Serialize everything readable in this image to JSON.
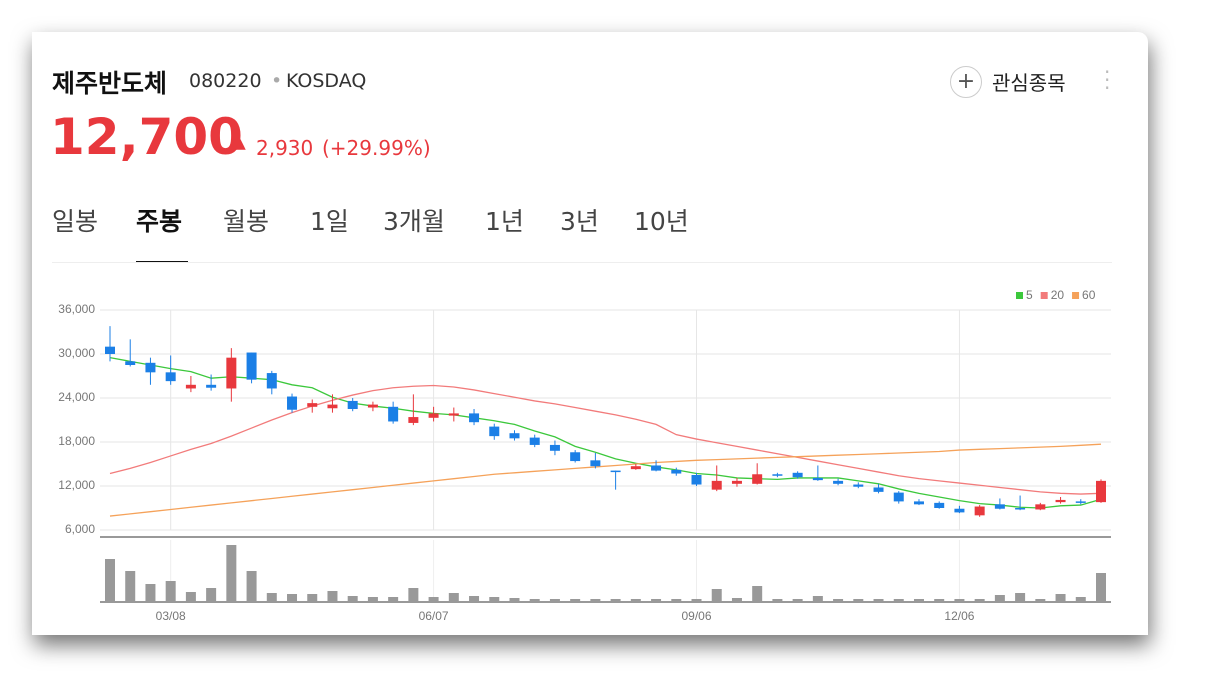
{
  "header": {
    "name": "제주반도체",
    "code": "080220",
    "market": "KOSDAQ",
    "price": "12,700",
    "change": "2,930",
    "change_pct": "(+29.99%)",
    "watch": "관심종목"
  },
  "tabs": [
    "일봉",
    "주봉",
    "월봉",
    "1일",
    "3개월",
    "1년",
    "3년",
    "10년"
  ],
  "selected_tab": 1,
  "chart_data": {
    "type": "candlestick",
    "categories": [
      null,
      null,
      null,
      "03/08",
      null,
      null,
      null,
      null,
      null,
      null,
      null,
      null,
      null,
      null,
      null,
      null,
      "06/07",
      null,
      null,
      null,
      null,
      null,
      null,
      null,
      null,
      null,
      null,
      null,
      null,
      "09/06",
      null,
      null,
      null,
      null,
      null,
      null,
      null,
      null,
      null,
      null,
      null,
      null,
      "12/06",
      null,
      null,
      null,
      null,
      null,
      null,
      null
    ],
    "open": [
      31000,
      29000,
      28800,
      27500,
      25300,
      25800,
      25300,
      30200,
      27400,
      24200,
      22800,
      22600,
      23600,
      22700,
      22800,
      20600,
      21300,
      21600,
      21900,
      20100,
      19200,
      18600,
      17600,
      16600,
      15500,
      14100,
      14300,
      14800,
      14200,
      13500,
      11500,
      12300,
      12300,
      13600,
      13800,
      13100,
      12700,
      12200,
      11800,
      11100,
      9900,
      9700,
      8900,
      8000,
      9500,
      9000,
      8800,
      9800,
      9900,
      9800
    ],
    "high": [
      33800,
      32000,
      29500,
      29800,
      27000,
      27200,
      30800,
      30200,
      27700,
      24600,
      23800,
      24500,
      24000,
      23500,
      23500,
      24500,
      22800,
      22700,
      22500,
      20500,
      19600,
      19000,
      18200,
      16900,
      16500,
      14100,
      15000,
      15500,
      14500,
      13800,
      14800,
      13100,
      15100,
      13800,
      14000,
      14800,
      13000,
      12500,
      12300,
      11300,
      10200,
      9900,
      9300,
      9400,
      10300,
      10700,
      9700,
      10500,
      10200,
      12900
    ],
    "low": [
      29000,
      28300,
      25800,
      25800,
      24800,
      25000,
      23500,
      26000,
      24500,
      22000,
      22000,
      22000,
      22200,
      22200,
      20500,
      20300,
      20800,
      20800,
      20300,
      18300,
      18200,
      17300,
      16200,
      15200,
      14400,
      11500,
      14200,
      14000,
      13400,
      12000,
      11300,
      11900,
      12200,
      13200,
      13000,
      12700,
      12100,
      11700,
      11000,
      9600,
      9400,
      8900,
      8300,
      7800,
      8800,
      8700,
      8700,
      9600,
      9500,
      9700
    ],
    "close": [
      30000,
      28500,
      27500,
      26300,
      25800,
      25400,
      29500,
      26500,
      25300,
      22400,
      23300,
      23100,
      22500,
      23100,
      20800,
      21400,
      21900,
      21900,
      20700,
      18800,
      18500,
      17600,
      16800,
      15400,
      14700,
      13900,
      14700,
      14100,
      13700,
      12200,
      12700,
      12700,
      13600,
      13400,
      13200,
      12800,
      12300,
      11900,
      11200,
      9900,
      9500,
      9000,
      8400,
      9200,
      8900,
      8800,
      9500,
      10100,
      9700,
      12700
    ],
    "up_color": "#e8383d",
    "down_color": "#1b7fe6",
    "series": [
      {
        "name": "5",
        "color": "#3cc83c",
        "values": [
          29500,
          29000,
          28500,
          28000,
          27600,
          26700,
          26900,
          26700,
          26500,
          25800,
          25400,
          24100,
          23300,
          22900,
          22600,
          22200,
          21900,
          21700,
          21300,
          20900,
          20400,
          19500,
          18700,
          17400,
          16600,
          15700,
          15100,
          14600,
          14200,
          13700,
          13500,
          13100,
          13000,
          12900,
          13100,
          13100,
          13100,
          12700,
          12300,
          11600,
          11000,
          10500,
          10000,
          9600,
          9400,
          9100,
          9000,
          9300,
          9400,
          10200
        ]
      },
      {
        "name": "20",
        "color": "#f27b7b",
        "values": [
          13700,
          14400,
          15200,
          16100,
          17000,
          17800,
          18800,
          19900,
          21000,
          22000,
          22900,
          23700,
          24400,
          25000,
          25400,
          25600,
          25700,
          25500,
          25100,
          24600,
          24100,
          23600,
          23200,
          22700,
          22200,
          21700,
          21100,
          20400,
          19000,
          18400,
          17900,
          17400,
          16900,
          16400,
          15900,
          15400,
          14900,
          14400,
          13900,
          13400,
          13000,
          12700,
          12400,
          12100,
          11800,
          11500,
          11200,
          11000,
          10900,
          11000
        ]
      },
      {
        "name": "60",
        "color": "#f5a25a",
        "values": [
          7900,
          8200,
          8500,
          8800,
          9100,
          9400,
          9700,
          10000,
          10300,
          10600,
          10900,
          11200,
          11500,
          11800,
          12100,
          12400,
          12700,
          13000,
          13300,
          13600,
          13800,
          14000,
          14200,
          14400,
          14600,
          14800,
          15000,
          15200,
          15350,
          15500,
          15600,
          15700,
          15800,
          15900,
          16000,
          16100,
          16200,
          16300,
          16400,
          16500,
          16600,
          16700,
          16900,
          17000,
          17100,
          17200,
          17300,
          17400,
          17550,
          17700
        ]
      }
    ],
    "volume": [
      43,
      31,
      18,
      21,
      10,
      14,
      57,
      31,
      9,
      8,
      8,
      11,
      6,
      5,
      5,
      14,
      5,
      9,
      6,
      5,
      4,
      3,
      3,
      3,
      3,
      3,
      3,
      3,
      3,
      3,
      13,
      4,
      16,
      3,
      3,
      6,
      3,
      3,
      3,
      3,
      3,
      3,
      3,
      3,
      7,
      9,
      3,
      8,
      5,
      29
    ],
    "volume_color": "#999999",
    "ylim": [
      6000,
      36000
    ],
    "yticks": [
      {
        "value": 6000,
        "label": "6,000"
      },
      {
        "value": 12000,
        "label": "12,000"
      },
      {
        "value": 18000,
        "label": "18,000"
      },
      {
        "value": 24000,
        "label": "24,000"
      },
      {
        "value": 30000,
        "label": "30,000"
      },
      {
        "value": 36000,
        "label": "36,000"
      }
    ],
    "grid": true,
    "legend": "top-right"
  }
}
